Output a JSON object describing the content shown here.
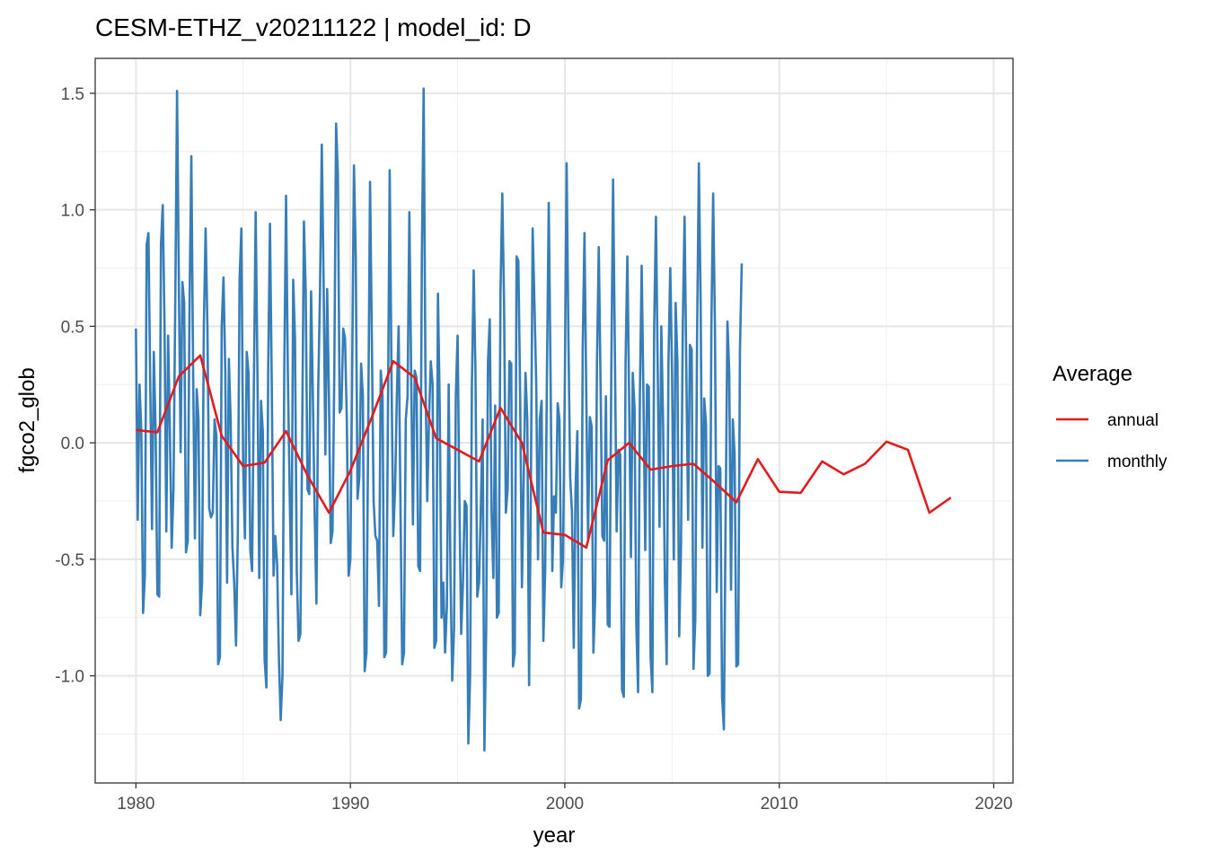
{
  "chart_data": {
    "type": "line",
    "title": "CESM-ETHZ_v20211122 | model_id: D",
    "xlabel": "year",
    "ylabel": "fgco2_glob",
    "xlim": [
      1978.1,
      2020.9
    ],
    "ylim": [
      -1.46,
      1.65
    ],
    "x_ticks": [
      1980,
      1990,
      2000,
      2010,
      2020
    ],
    "x_tick_labels": [
      "1980",
      "1990",
      "2000",
      "2010",
      "2020"
    ],
    "x_minor_ticks": [
      1985,
      1995,
      2005,
      2015
    ],
    "y_ticks": [
      -1.0,
      -0.5,
      0.0,
      0.5,
      1.0,
      1.5
    ],
    "y_tick_labels": [
      "-1.0",
      "-0.5",
      "0.0",
      "0.5",
      "1.0",
      "1.5"
    ],
    "y_minor_ticks": [
      -1.25,
      -0.75,
      -0.25,
      0.25,
      0.75,
      1.25
    ],
    "grid": true,
    "legend": {
      "title": "Average",
      "position": "right",
      "entries": [
        {
          "label": "annual",
          "color": "#E41A1C"
        },
        {
          "label": "monthly",
          "color": "#377EB8"
        }
      ]
    },
    "series": [
      {
        "name": "annual",
        "color": "#E41A1C",
        "x": [
          1980,
          1981,
          1982,
          1983,
          1984,
          1985,
          1986,
          1987,
          1988,
          1989,
          1990,
          1991,
          1992,
          1993,
          1994,
          1995,
          1996,
          1997,
          1998,
          1999,
          2000,
          2001,
          2002,
          2003,
          2004,
          2005,
          2006,
          2007,
          2008,
          2009,
          2010,
          2011,
          2012,
          2013,
          2014,
          2015,
          2016,
          2017,
          2018
        ],
        "y": [
          0.055,
          0.045,
          0.285,
          0.375,
          0.03,
          -0.1,
          -0.085,
          0.05,
          -0.14,
          -0.3,
          -0.12,
          0.11,
          0.35,
          0.28,
          0.02,
          -0.03,
          -0.08,
          0.15,
          0.0,
          -0.385,
          -0.395,
          -0.45,
          -0.075,
          0.0,
          -0.115,
          -0.1,
          -0.09,
          -0.17,
          -0.255,
          -0.07,
          -0.21,
          -0.215,
          -0.08,
          -0.135,
          -0.09,
          0.005,
          -0.03,
          -0.3,
          -0.235
        ]
      },
      {
        "name": "monthly",
        "color": "#377EB8",
        "x_start": 1980.0,
        "x_step": 0.0833333,
        "y": [
          0.49,
          -0.33,
          0.25,
          0.05,
          -0.73,
          -0.57,
          0.85,
          0.9,
          0.25,
          -0.37,
          0.39,
          0.05,
          -0.65,
          -0.66,
          0.85,
          1.02,
          0.5,
          -0.38,
          0.46,
          0.05,
          -0.45,
          -0.2,
          0.6,
          1.51,
          0.7,
          -0.04,
          0.69,
          0.6,
          -0.47,
          -0.42,
          0.6,
          1.23,
          0.3,
          -0.41,
          0.23,
          0.1,
          -0.74,
          -0.6,
          0.5,
          0.92,
          0.5,
          -0.28,
          -0.32,
          -0.3,
          0.1,
          0.03,
          -0.95,
          -0.92,
          0.5,
          0.71,
          0.3,
          -0.6,
          0.36,
          0.1,
          -0.45,
          -0.6,
          -0.87,
          -0.4,
          0.7,
          0.92,
          -0.1,
          -0.41,
          0.39,
          0.3,
          -0.46,
          -0.55,
          0.25,
          0.99,
          0.3,
          -0.58,
          0.18,
          0.05,
          -0.93,
          -1.05,
          0.3,
          0.94,
          0.25,
          -0.57,
          -0.4,
          -0.52,
          -0.92,
          -1.19,
          -1.0,
          0.3,
          1.06,
          0.3,
          -0.2,
          -0.65,
          0.7,
          0.45,
          -0.55,
          -0.85,
          -0.82,
          0.0,
          0.95,
          0.65,
          -0.2,
          -0.22,
          0.65,
          0.2,
          -0.3,
          -0.69,
          0.23,
          0.65,
          1.28,
          0.7,
          -0.05,
          0.66,
          0.2,
          -0.43,
          -0.38,
          0.3,
          1.37,
          1.15,
          0.13,
          0.15,
          0.49,
          0.45,
          0.1,
          -0.57,
          -0.5,
          0.3,
          1.19,
          0.8,
          -0.24,
          -0.15,
          0.34,
          0.2,
          -0.98,
          -0.9,
          0.1,
          1.12,
          0.45,
          -0.25,
          -0.4,
          -0.42,
          -0.7,
          0.31,
          0.2,
          -0.92,
          -0.9,
          0.1,
          1.17,
          0.3,
          -0.4,
          -0.2,
          0.2,
          0.5,
          -0.25,
          -0.95,
          -0.9,
          0.1,
          0.2,
          0.99,
          0.3,
          -0.35,
          0.31,
          0.28,
          -0.53,
          -0.55,
          0.8,
          1.52,
          0.3,
          -0.25,
          0.1,
          0.35,
          0.25,
          -0.88,
          -0.85,
          0.64,
          0.15,
          -0.75,
          -0.6,
          -0.9,
          -0.7,
          0.25,
          -0.55,
          -1.02,
          -0.8,
          0.2,
          0.46,
          -0.25,
          -0.82,
          -0.6,
          -0.25,
          -0.27,
          -1.29,
          -1.0,
          0.25,
          0.74,
          0.3,
          -0.66,
          -0.6,
          -0.28,
          0.1,
          -1.32,
          -0.8,
          0.35,
          0.53,
          -0.3,
          -0.58,
          0.16,
          -0.75,
          -0.73,
          0.65,
          1.07,
          0.6,
          -0.3,
          -0.2,
          0.35,
          0.34,
          -0.96,
          -0.9,
          0.8,
          0.78,
          0.2,
          -0.62,
          -0.15,
          0.3,
          0.1,
          -1.04,
          -0.2,
          0.92,
          0.6,
          0.25,
          -0.5,
          0.1,
          0.18,
          -0.85,
          -0.55,
          0.3,
          1.03,
          0.3,
          -0.55,
          -0.23,
          -0.3,
          0.17,
          0.1,
          -0.62,
          -0.5,
          0.25,
          1.2,
          0.45,
          -0.15,
          -0.3,
          -0.88,
          -0.2,
          0.05,
          -1.14,
          -1.1,
          0.4,
          0.9,
          0.2,
          -0.41,
          0.11,
          0.07,
          -0.9,
          -0.66,
          0.35,
          0.84,
          0.25,
          -0.4,
          -0.42,
          0.2,
          -0.78,
          -0.79,
          0.3,
          1.13,
          0.4,
          -0.38,
          -0.03,
          -0.05,
          -1.06,
          -1.09,
          0.35,
          0.8,
          0.18,
          -0.49,
          0.3,
          0.15,
          -0.78,
          -1.07,
          0.2,
          0.76,
          0.2,
          -0.46,
          0.25,
          0.24,
          -0.92,
          -1.07,
          0.5,
          0.97,
          0.3,
          -0.36,
          0.5,
          0.08,
          -0.6,
          -0.95,
          0.35,
          0.75,
          0.3,
          -0.5,
          0.6,
          0.35,
          -0.83,
          -0.45,
          0.5,
          0.97,
          0.3,
          -0.33,
          0.42,
          0.4,
          -0.97,
          -0.76,
          0.45,
          1.2,
          0.6,
          -0.45,
          0.19,
          0.08,
          -1.0,
          -0.99,
          0.5,
          1.07,
          0.5,
          -0.64,
          -0.1,
          -0.11,
          -1.09,
          -1.23,
          -0.3,
          0.52,
          0.3,
          -0.63,
          0.1,
          -0.05,
          -0.96,
          -0.95,
          0.4,
          0.77
        ]
      }
    ]
  }
}
